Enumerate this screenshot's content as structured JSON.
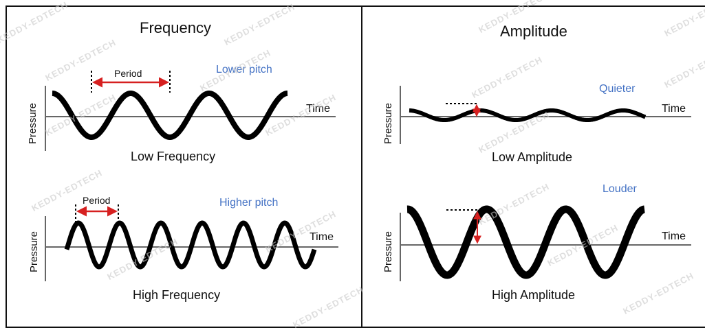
{
  "watermark": "KEDDY-EDTECH",
  "colors": {
    "wave": "#000000",
    "axis": "#666666",
    "arrow": "#d62020",
    "pitch_text": "#4472c4"
  },
  "frequency_panel": {
    "title": "Frequency",
    "low": {
      "caption": "Low Frequency",
      "axis_y": "Pressure",
      "axis_x": "Time",
      "period_label": "Period",
      "pitch_label": "Lower pitch",
      "cycles": 3
    },
    "high": {
      "caption": "High Frequency",
      "axis_y": "Pressure",
      "axis_x": "Time",
      "period_label": "Period",
      "pitch_label": "Higher pitch",
      "cycles": 6
    }
  },
  "amplitude_panel": {
    "title": "Amplitude",
    "low": {
      "caption": "Low Amplitude",
      "axis_y": "Pressure",
      "axis_x": "Time",
      "loudness_label": "Quieter",
      "cycles": 3,
      "relative_amplitude": 0.4
    },
    "high": {
      "caption": "High Amplitude",
      "axis_y": "Pressure",
      "axis_x": "Time",
      "loudness_label": "Louder",
      "cycles": 3,
      "relative_amplitude": 1.0
    }
  }
}
